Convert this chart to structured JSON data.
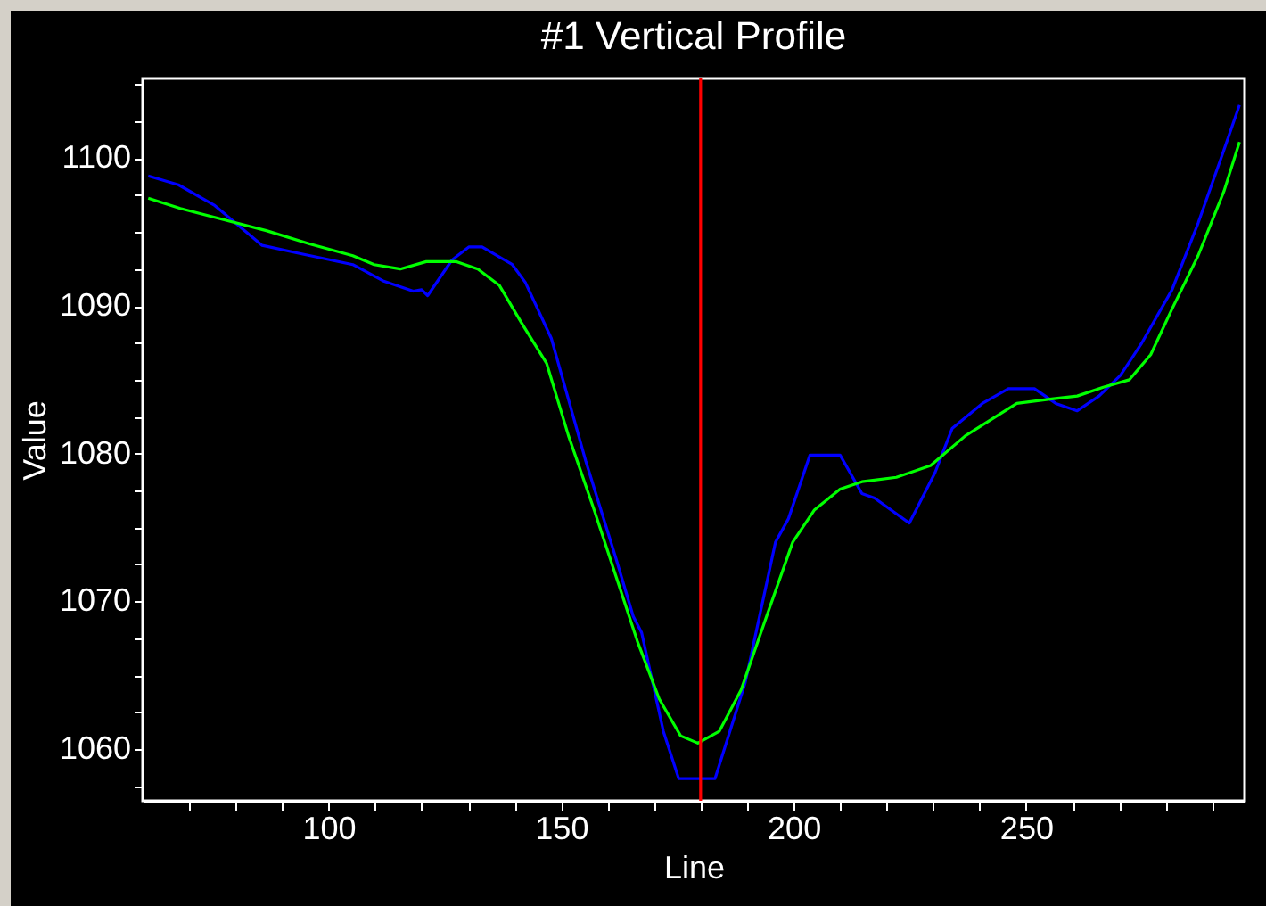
{
  "chart_data": {
    "type": "line",
    "title": "#1 Vertical Profile",
    "xlabel": "Line",
    "ylabel": "Value",
    "xlim": [
      60,
      297
    ],
    "ylim": [
      1056.5,
      1105.4
    ],
    "xticks": [
      {
        "value": 70,
        "label": null
      },
      {
        "value": 80,
        "label": null
      },
      {
        "value": 90,
        "label": null
      },
      100,
      {
        "value": 110,
        "label": null
      },
      {
        "value": 120,
        "label": null
      },
      {
        "value": 130,
        "label": null
      },
      {
        "value": 140,
        "label": null
      },
      150,
      {
        "value": 160,
        "label": null
      },
      {
        "value": 170,
        "label": null
      },
      {
        "value": 180,
        "label": null
      },
      {
        "value": 190,
        "label": null
      },
      200,
      {
        "value": 210,
        "label": null
      },
      {
        "value": 220,
        "label": null
      },
      {
        "value": 230,
        "label": null
      },
      {
        "value": 240,
        "label": null
      },
      250,
      {
        "value": 260,
        "label": null
      },
      {
        "value": 270,
        "label": null
      },
      {
        "value": 280,
        "label": null
      },
      {
        "value": 290,
        "label": null
      }
    ],
    "yticks": [
      {
        "value": 1057.5,
        "label": null
      },
      1060,
      {
        "value": 1062.5,
        "label": null
      },
      {
        "value": 1065,
        "label": null
      },
      {
        "value": 1067.5,
        "label": null
      },
      1070,
      {
        "value": 1072.5,
        "label": null
      },
      {
        "value": 1075,
        "label": null
      },
      {
        "value": 1077.5,
        "label": null
      },
      1080,
      {
        "value": 1082.5,
        "label": null
      },
      {
        "value": 1085,
        "label": null
      },
      {
        "value": 1087.5,
        "label": null
      },
      1090,
      {
        "value": 1092.5,
        "label": null
      },
      {
        "value": 1095,
        "label": null
      },
      {
        "value": 1097.5,
        "label": null
      },
      1100,
      {
        "value": 1102.5,
        "label": null
      },
      {
        "value": 1105,
        "label": null
      }
    ],
    "series": [
      {
        "color": "#0000ff",
        "x": [
          61.2,
          67.7,
          75.5,
          85.7,
          93.1,
          105.2,
          111.7,
          118.2,
          120,
          121.3,
          126.5,
          130.2,
          133,
          139.5,
          142.3,
          147.9,
          155.3,
          161.8,
          165.5,
          167.3,
          172,
          175.3,
          183.1,
          189.6,
          196.1,
          198.9,
          203.5,
          210,
          214.7,
          217.4,
          224.9,
          230.4,
          234.1,
          240.6,
          246.2,
          251.8,
          256.4,
          261,
          265.7,
          270.3,
          274.9,
          281.4,
          287,
          292.6,
          295.9
        ],
        "values": [
          1098.8,
          1098.2,
          1096.8,
          1094.1,
          1093.6,
          1092.8,
          1091.7,
          1091.0,
          1091.1,
          1090.7,
          1093.1,
          1094.0,
          1094.0,
          1092.8,
          1091.6,
          1087.8,
          1079.5,
          1072.9,
          1069.0,
          1067.9,
          1061.2,
          1058.0,
          1058.0,
          1064.5,
          1074.0,
          1075.6,
          1079.9,
          1079.9,
          1077.3,
          1077.0,
          1075.3,
          1078.7,
          1081.7,
          1083.4,
          1084.4,
          1084.4,
          1083.4,
          1082.9,
          1083.9,
          1085.3,
          1087.5,
          1091.1,
          1095.6,
          1100.6,
          1103.6
        ]
      },
      {
        "color": "#00ff00",
        "x": [
          61.2,
          68.1,
          75.5,
          86.6,
          95.9,
          105.2,
          109.8,
          115.4,
          121,
          127.5,
          132.1,
          136.7,
          141.4,
          146.9,
          151.6,
          157.1,
          161.8,
          166.4,
          171.1,
          175.7,
          179.4,
          184,
          188.7,
          194.2,
          199.8,
          204.5,
          210,
          214.7,
          222.1,
          229.5,
          236.9,
          248,
          255.5,
          261,
          266.6,
          272.2,
          276.8,
          281.4,
          287,
          292.6,
          295.9
        ],
        "values": [
          1097.3,
          1096.6,
          1096.0,
          1095.1,
          1094.2,
          1093.4,
          1092.8,
          1092.5,
          1093.0,
          1093.0,
          1092.5,
          1091.4,
          1088.9,
          1086.1,
          1081.2,
          1076.2,
          1071.7,
          1067.3,
          1063.4,
          1060.9,
          1060.4,
          1061.2,
          1064.0,
          1069.0,
          1074.0,
          1076.2,
          1077.6,
          1078.1,
          1078.4,
          1079.2,
          1081.2,
          1083.4,
          1083.7,
          1083.9,
          1084.5,
          1085.0,
          1086.7,
          1089.8,
          1093.4,
          1097.8,
          1101.1
        ]
      }
    ],
    "ref_lines": [
      {
        "axis": "x",
        "value": 180,
        "color": "#ff0000"
      }
    ]
  }
}
